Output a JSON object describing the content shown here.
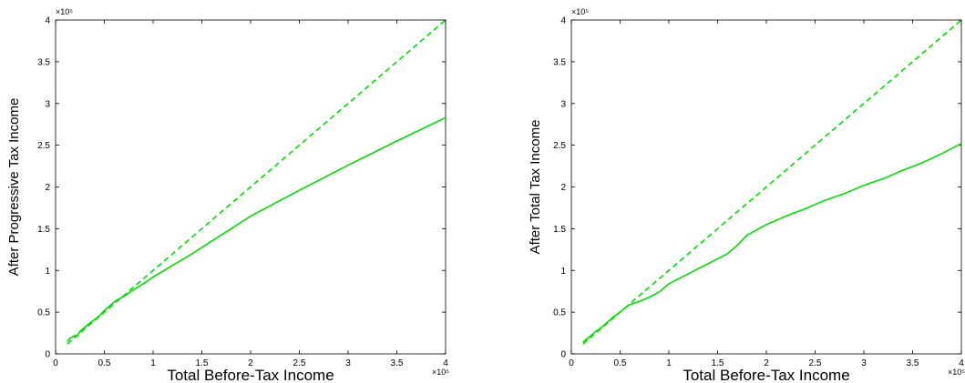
{
  "colors": {
    "line": "#00dd00",
    "axes": "#000000",
    "background": "#ffffff"
  },
  "chart_data": [
    {
      "type": "line",
      "title": "",
      "xlabel": "Total Before-Tax Income",
      "ylabel": "After Progressive Tax Income",
      "x_exponent_label": "×10⁵",
      "y_exponent_label": "×10⁵",
      "xlim": [
        0,
        4
      ],
      "ylim": [
        0,
        4
      ],
      "xticks": [
        0,
        0.5,
        1,
        1.5,
        2,
        2.5,
        3,
        3.5,
        4
      ],
      "yticks": [
        0,
        0.5,
        1,
        1.5,
        2,
        2.5,
        3,
        3.5,
        4
      ],
      "xtick_labels": [
        "0",
        "0.5",
        "1",
        "1.5",
        "2",
        "2.5",
        "3",
        "3.5",
        "4"
      ],
      "ytick_labels": [
        "0",
        "0.5",
        "1",
        "1.5",
        "2",
        "2.5",
        "3",
        "3.5",
        "4"
      ],
      "grid": false,
      "series": [
        {
          "style": "solid",
          "x": [
            0.12,
            0.15,
            0.2,
            0.22,
            0.25,
            0.3,
            0.35,
            0.4,
            0.45,
            0.5,
            0.55,
            0.6,
            0.65,
            0.7,
            0.75,
            0.8,
            0.9,
            1.0,
            1.2,
            1.4,
            1.6,
            1.8,
            2.0,
            2.5,
            3.0,
            3.5,
            4.0
          ],
          "y": [
            0.15,
            0.19,
            0.22,
            0.21,
            0.27,
            0.32,
            0.37,
            0.41,
            0.46,
            0.52,
            0.57,
            0.62,
            0.66,
            0.69,
            0.73,
            0.77,
            0.84,
            0.92,
            1.06,
            1.2,
            1.35,
            1.5,
            1.65,
            1.96,
            2.26,
            2.55,
            2.83
          ]
        },
        {
          "style": "dashed",
          "x": [
            0.12,
            4.0
          ],
          "y": [
            0.12,
            4.0
          ]
        }
      ]
    },
    {
      "type": "line",
      "title": "",
      "xlabel": "Total Before-Tax Income",
      "ylabel": "After Total Tax Income",
      "x_exponent_label": "×10⁵",
      "y_exponent_label": "×10⁵",
      "xlim": [
        0,
        4
      ],
      "ylim": [
        0,
        4
      ],
      "xticks": [
        0,
        0.5,
        1,
        1.5,
        2,
        2.5,
        3,
        3.5,
        4
      ],
      "yticks": [
        0,
        0.5,
        1,
        1.5,
        2,
        2.5,
        3,
        3.5,
        4
      ],
      "xtick_labels": [
        "0",
        "0.5",
        "1",
        "1.5",
        "2",
        "2.5",
        "3",
        "3.5",
        "4"
      ],
      "ytick_labels": [
        "0",
        "0.5",
        "1",
        "1.5",
        "2",
        "2.5",
        "3",
        "3.5",
        "4"
      ],
      "grid": false,
      "series": [
        {
          "style": "solid",
          "x": [
            0.12,
            0.15,
            0.2,
            0.25,
            0.3,
            0.35,
            0.4,
            0.45,
            0.5,
            0.55,
            0.6,
            0.65,
            0.7,
            0.8,
            0.9,
            1.0,
            1.1,
            1.2,
            1.3,
            1.4,
            1.5,
            1.6,
            1.7,
            1.8,
            2.0,
            2.2,
            2.4,
            2.6,
            2.8,
            3.0,
            3.2,
            3.4,
            3.6,
            3.8,
            4.0
          ],
          "y": [
            0.14,
            0.17,
            0.22,
            0.27,
            0.31,
            0.36,
            0.41,
            0.46,
            0.5,
            0.55,
            0.59,
            0.61,
            0.63,
            0.68,
            0.74,
            0.84,
            0.9,
            0.96,
            1.02,
            1.08,
            1.14,
            1.2,
            1.3,
            1.42,
            1.55,
            1.65,
            1.74,
            1.84,
            1.92,
            2.02,
            2.1,
            2.2,
            2.29,
            2.4,
            2.52
          ]
        },
        {
          "style": "dashed",
          "x": [
            0.12,
            4.0
          ],
          "y": [
            0.12,
            4.0
          ]
        }
      ]
    }
  ]
}
